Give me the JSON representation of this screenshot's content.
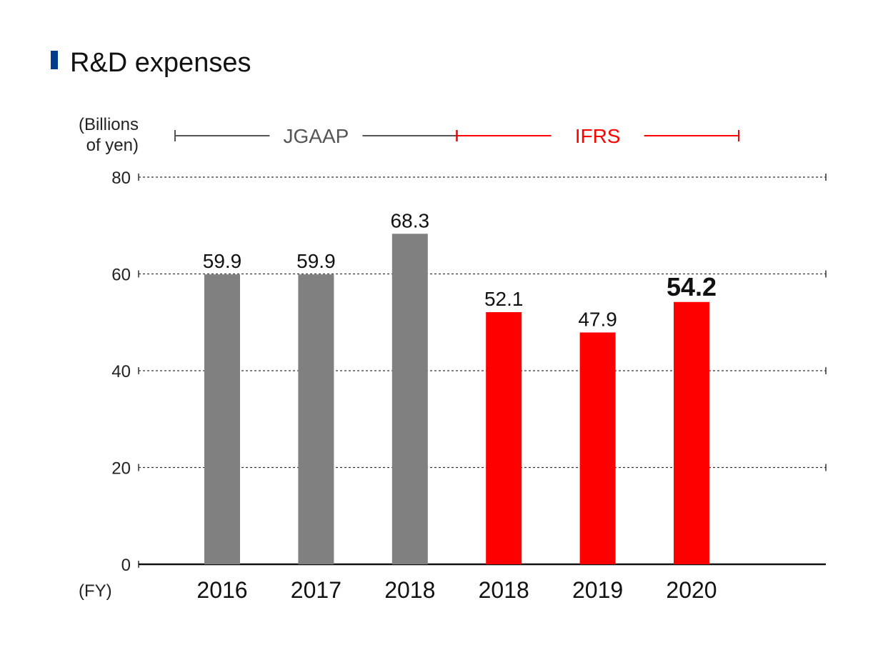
{
  "colors": {
    "title_marker": "#003a8c",
    "jgaap_bar": "#808080",
    "ifrs_bar": "#ff0000",
    "jgaap_bracket": "#555555",
    "ifrs_bracket": "#ff0000"
  },
  "chart_data": {
    "type": "bar",
    "title": "R&D expenses",
    "ylabel_line1": "(Billions",
    "ylabel_line2": "of yen)",
    "xlabel": "(FY)",
    "ylim": [
      0,
      80
    ],
    "yticks": [
      "0",
      "20",
      "40",
      "60",
      "80"
    ],
    "grid": true,
    "categories": [
      "2016",
      "2017",
      "2018",
      "2018",
      "2019",
      "2020"
    ],
    "values": [
      59.9,
      59.9,
      68.3,
      52.1,
      47.9,
      54.2
    ],
    "value_labels": [
      "59.9",
      "59.9",
      "68.3",
      "52.1",
      "47.9",
      "54.2"
    ],
    "standards": [
      "JGAAP",
      "JGAAP",
      "JGAAP",
      "IFRS",
      "IFRS",
      "IFRS"
    ],
    "highlight_index": 5,
    "brackets": [
      {
        "label": "JGAAP",
        "standard": "JGAAP"
      },
      {
        "label": "IFRS",
        "standard": "IFRS"
      }
    ]
  }
}
